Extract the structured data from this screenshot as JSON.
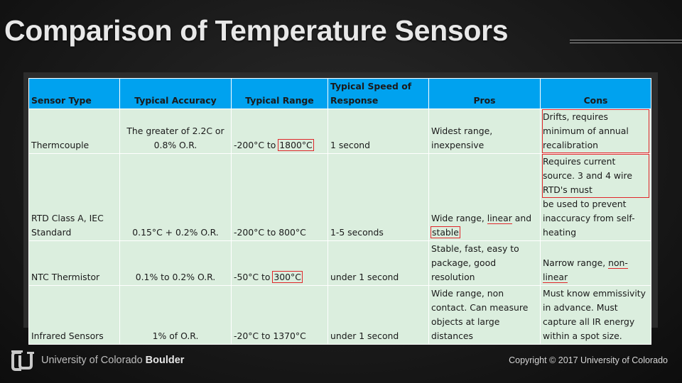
{
  "slide": {
    "title": "Comparison of Temperature Sensors"
  },
  "table": {
    "headers": [
      "Sensor Type",
      "Typical Accuracy",
      "Typical Range",
      "Typical Speed of Response",
      "Pros",
      "Cons"
    ],
    "rows": [
      {
        "type": "Thermcouple",
        "accuracy": "The greater of 2.2C or 0.8% O.R.",
        "range_pre": "-200°C to ",
        "range_hl": "1800°C",
        "speed": "1 second",
        "pros": "Widest range, inexpensive",
        "cons_hl": "Drifts, requires minimum of annual recalibration"
      },
      {
        "type": "RTD Class A, IEC Standard",
        "accuracy": "0.15°C + 0.2% O.R.",
        "range": "-200°C to 800°C",
        "speed": "1-5 seconds",
        "pros_a": "Wide range, ",
        "pros_ul": "linear",
        "pros_b": " and ",
        "pros_hl": "stable",
        "cons_hl": "Requires current source. 3 and 4 wire RTD's must",
        "cons_rest": "be used to prevent inaccuracy from self-heating"
      },
      {
        "type": "NTC Thermistor",
        "accuracy": "0.1% to 0.2% O.R.",
        "range_pre": "-50°C to ",
        "range_hl": "300°C",
        "speed": "under 1 second",
        "pros": "Stable, fast, easy to package, good resolution",
        "cons_a": "Narrow range, ",
        "cons_ul": "non-linear"
      },
      {
        "type": "Infrared Sensors",
        "accuracy": "1% of O.R.",
        "range": "-20°C to 1370°C",
        "speed": "under 1 second",
        "pros": "Wide range, non contact. Can measure objects at large distances",
        "cons": "Must know emmissivity in advance. Must capture all IR energy within a spot size."
      }
    ]
  },
  "footer": {
    "university_prefix": "University of Colorado ",
    "university_bold": "Boulder",
    "copyright": "Copyright © 2017 University of Colorado"
  },
  "colors": {
    "header_bg": "#00a2ef",
    "cell_bg": "#dbeede",
    "highlight": "#e0262a"
  },
  "icons": {
    "logo": "cu-logo-icon"
  }
}
